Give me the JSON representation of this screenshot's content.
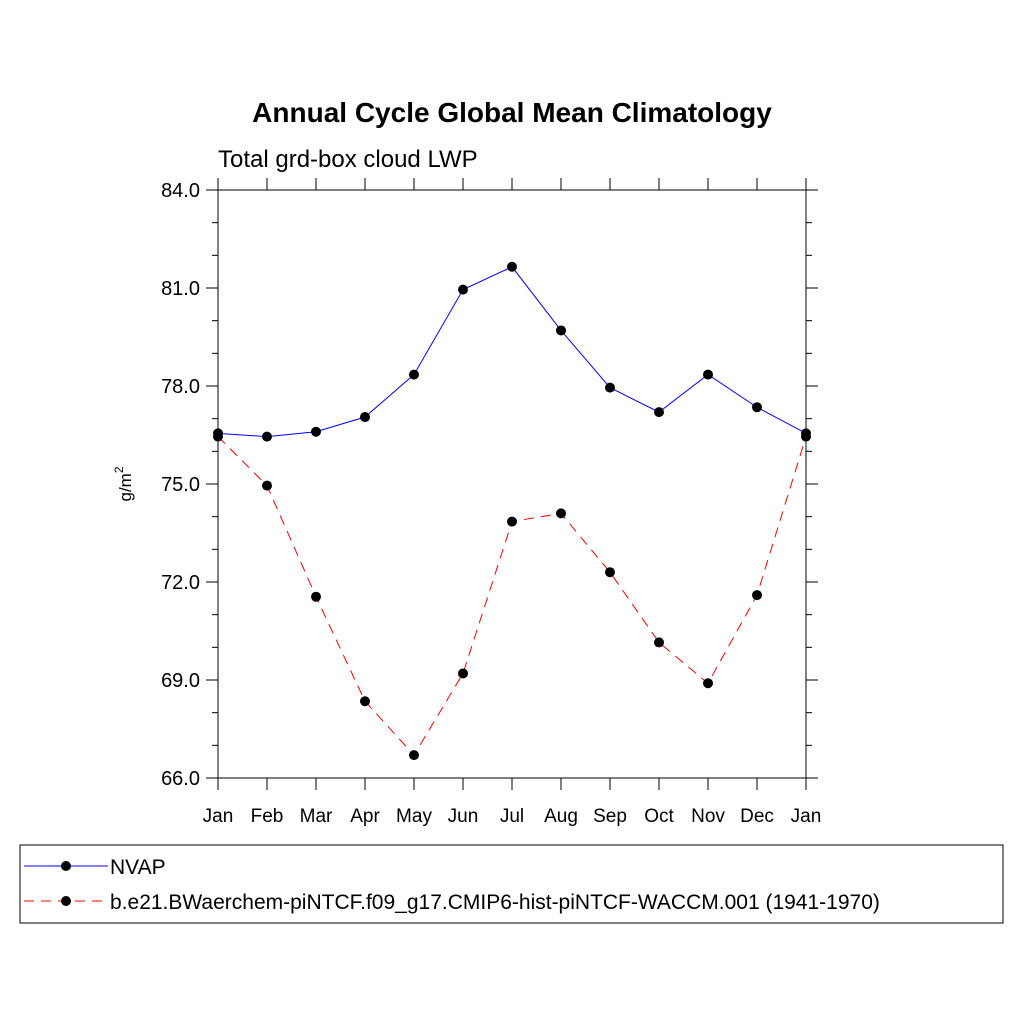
{
  "chart_data": {
    "type": "line",
    "title": "Annual Cycle Global Mean Climatology",
    "subtitle": "Total grd-box cloud LWP",
    "ylabel_base": "g/m",
    "ylabel_sup": "2",
    "xlabel": "",
    "categories": [
      "Jan",
      "Feb",
      "Mar",
      "Apr",
      "May",
      "Jun",
      "Jul",
      "Aug",
      "Sep",
      "Oct",
      "Nov",
      "Dec",
      "Jan"
    ],
    "ylim": [
      66.0,
      84.0
    ],
    "yticks": [
      "66.0",
      "69.0",
      "72.0",
      "75.0",
      "78.0",
      "81.0",
      "84.0"
    ],
    "grid": false,
    "legend_position": "bottom",
    "series": [
      {
        "name": "NVAP",
        "color": "#0000ff",
        "line_style": "solid",
        "marker": "circle",
        "values": [
          76.55,
          76.45,
          76.6,
          77.05,
          78.35,
          80.95,
          81.65,
          79.7,
          77.95,
          77.2,
          78.35,
          77.35,
          76.55
        ]
      },
      {
        "name": "b.e21.BWaerchem-piNTCF.f09_g17.CMIP6-hist-piNTCF-WACCM.001 (1941-1970)",
        "color": "#ff0000",
        "line_style": "dashed",
        "marker": "circle",
        "values": [
          76.45,
          74.95,
          71.55,
          68.35,
          66.7,
          69.2,
          73.85,
          74.1,
          72.3,
          70.15,
          68.9,
          71.6,
          76.45
        ]
      }
    ]
  }
}
